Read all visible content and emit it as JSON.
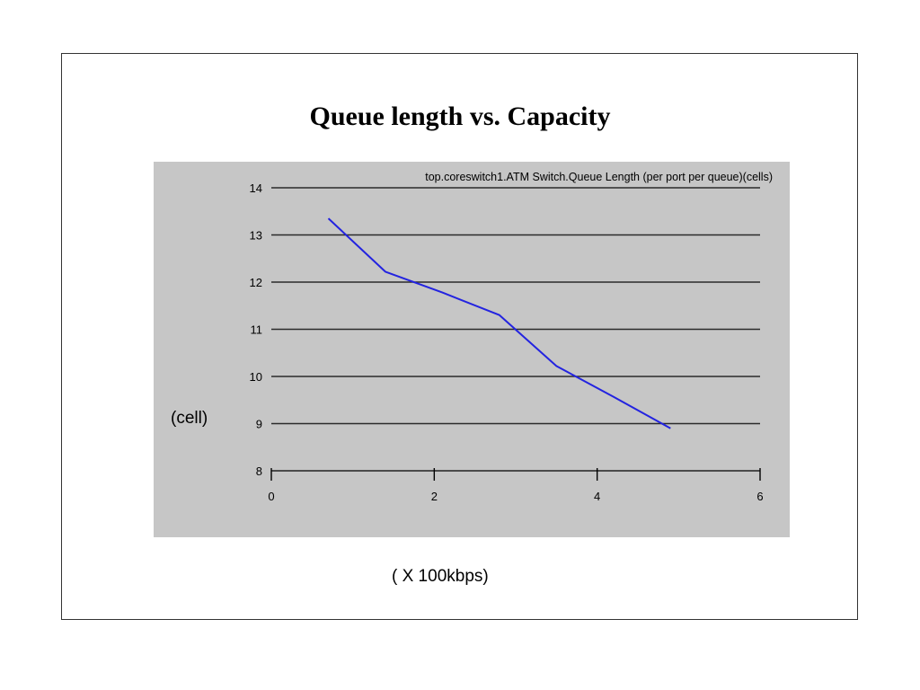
{
  "slide": {
    "title": "Queue length vs. Capacity",
    "y_unit_label": "(cell)",
    "x_unit_label": "( X 100kbps)"
  },
  "chart_data": {
    "type": "line",
    "title": "top.coreswitch1.ATM Switch.Queue Length (per port per queue)(cells)",
    "xlabel": "( X 100kbps)",
    "ylabel": "(cell)",
    "xlim": [
      0,
      6
    ],
    "ylim": [
      8,
      14
    ],
    "xticks": [
      0,
      2,
      4,
      6
    ],
    "yticks": [
      8,
      9,
      10,
      11,
      12,
      13,
      14
    ],
    "grid": "horizontal",
    "series": [
      {
        "color": "#2323e0",
        "x": [
          0.7,
          1.4,
          2.1,
          2.8,
          3.5,
          4.2,
          4.9
        ],
        "y": [
          13.35,
          12.22,
          11.78,
          11.3,
          10.22,
          9.57,
          8.9
        ]
      }
    ]
  }
}
